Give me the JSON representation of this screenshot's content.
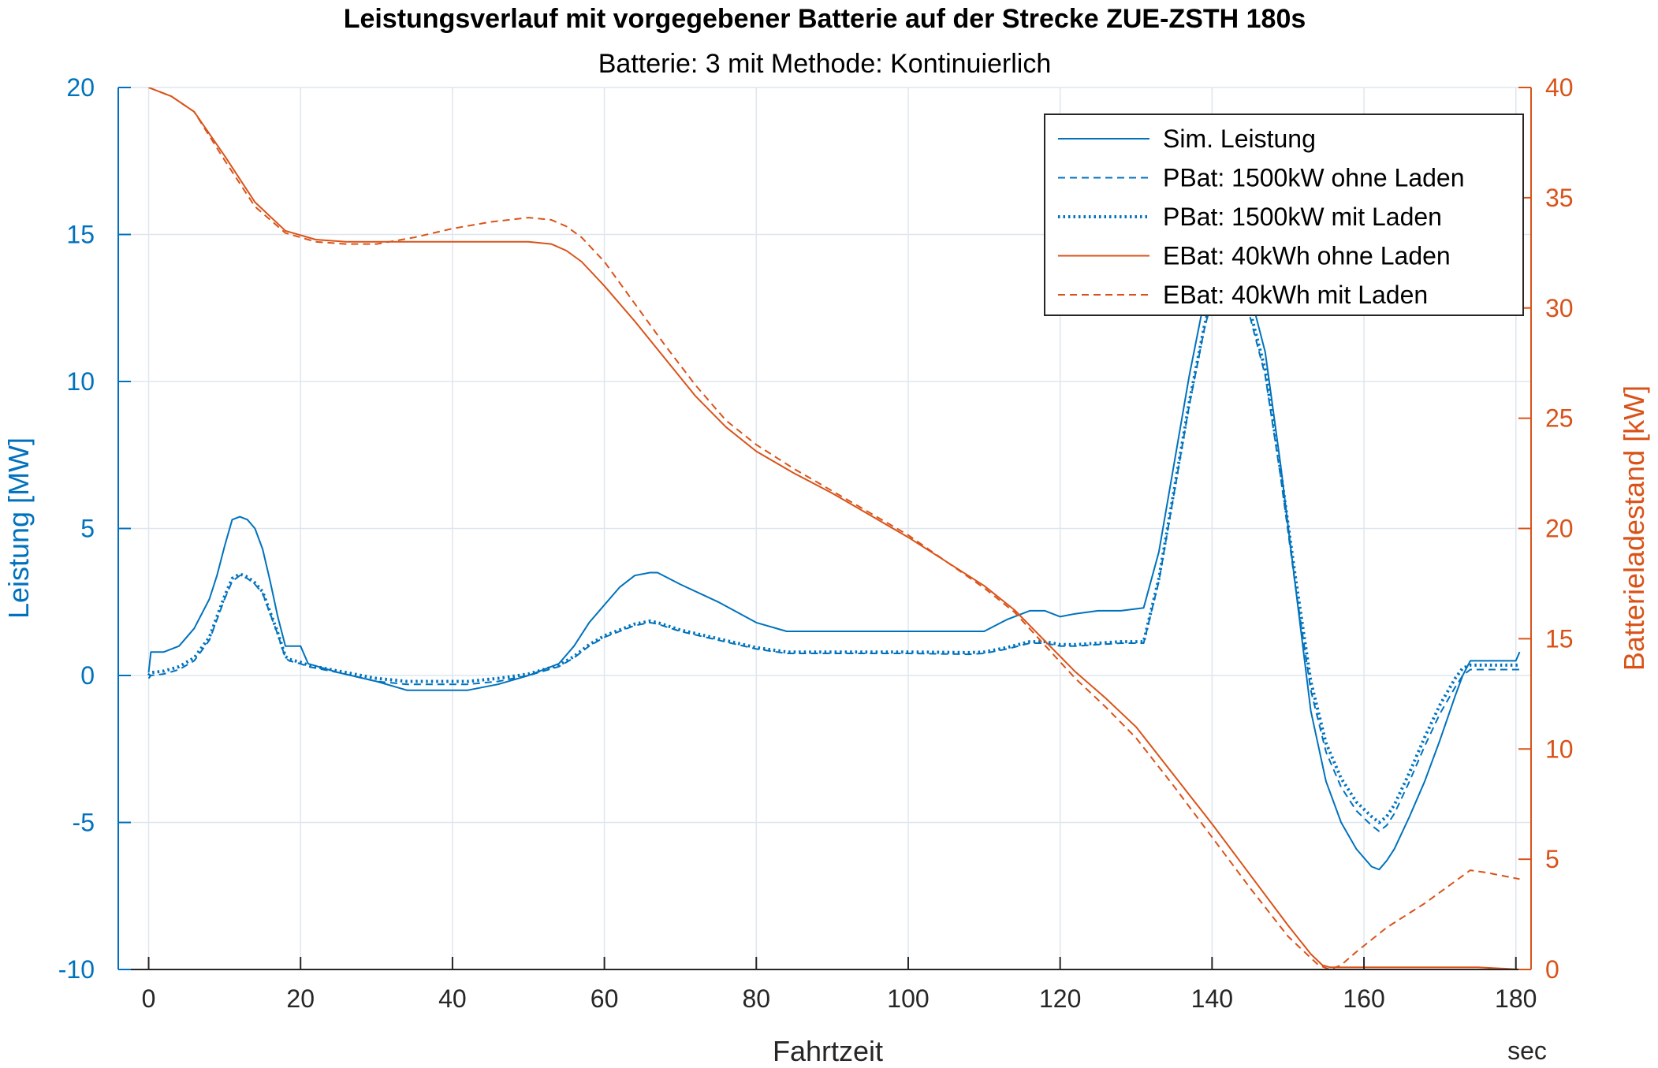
{
  "chart_data": {
    "type": "line",
    "title": "Leistungsverlauf mit vorgegebener Batterie auf der Strecke ZUE-ZSTH 180s",
    "subtitle": "Batterie: 3 mit Methode: Kontinuierlich",
    "xlabel": "Fahrtzeit",
    "xunit": "sec",
    "ylabel_left": "Leistung [MW]",
    "ylabel_right": "Batterieladestand [kW]",
    "xlim": [
      -4,
      182
    ],
    "ylim_left": [
      -10,
      20
    ],
    "ylim_right": [
      0,
      40
    ],
    "xticks": [
      0,
      20,
      40,
      60,
      80,
      100,
      120,
      140,
      160,
      180
    ],
    "yticks_left": [
      -10,
      -5,
      0,
      5,
      10,
      15,
      20
    ],
    "yticks_right": [
      0,
      5,
      10,
      15,
      20,
      25,
      30,
      35,
      40
    ],
    "grid": true,
    "legend_position": "top-right",
    "colors": {
      "left_axis": "#0072BD",
      "right_axis": "#D95319",
      "grid": "#dfe6ee"
    },
    "series": [
      {
        "name": "Sim. Leistung",
        "axis": "left",
        "color": "#0072BD",
        "style": "solid",
        "x": [
          0,
          0.3,
          2,
          4,
          6,
          8,
          9,
          10,
          11,
          12,
          13,
          14,
          15,
          16,
          17,
          18,
          18.5,
          20,
          21,
          25,
          30,
          34,
          38,
          42,
          46,
          50,
          54,
          56,
          58,
          60,
          62,
          64,
          66,
          67,
          70,
          75,
          80,
          84,
          90,
          100,
          108,
          110,
          113,
          116,
          118,
          120,
          122,
          125,
          128,
          131,
          133,
          135,
          137,
          139,
          141,
          143,
          145,
          147,
          149,
          151,
          153,
          155,
          157,
          159,
          161,
          162,
          163,
          164,
          166,
          168,
          170,
          172,
          173,
          174,
          175,
          178,
          180,
          180.5
        ],
        "values": [
          0.1,
          0.8,
          0.8,
          1.0,
          1.6,
          2.6,
          3.4,
          4.4,
          5.3,
          5.4,
          5.3,
          5.0,
          4.3,
          3.2,
          2.0,
          1.0,
          1.0,
          1.0,
          0.4,
          0.1,
          -0.2,
          -0.5,
          -0.5,
          -0.5,
          -0.3,
          0.0,
          0.4,
          1.0,
          1.8,
          2.4,
          3.0,
          3.4,
          3.5,
          3.5,
          3.1,
          2.5,
          1.8,
          1.5,
          1.5,
          1.5,
          1.5,
          1.5,
          1.9,
          2.2,
          2.2,
          2.0,
          2.1,
          2.2,
          2.2,
          2.3,
          4.2,
          7.2,
          10.2,
          12.8,
          14.2,
          14.2,
          13.0,
          11.0,
          7.2,
          3.0,
          -1.2,
          -3.6,
          -5.0,
          -5.9,
          -6.5,
          -6.6,
          -6.3,
          -5.9,
          -4.8,
          -3.6,
          -2.2,
          -0.7,
          0.0,
          0.5,
          0.5,
          0.5,
          0.5,
          0.8
        ]
      },
      {
        "name": "PBat: 1500kW ohne Laden",
        "axis": "left",
        "color": "#0072BD",
        "style": "dashed",
        "x": [
          0,
          0.3,
          2,
          4,
          6,
          8,
          9,
          10,
          11,
          12,
          13,
          14,
          15,
          16,
          17,
          18,
          18.5,
          20,
          21,
          25,
          30,
          34,
          38,
          42,
          46,
          50,
          54,
          56,
          58,
          60,
          62,
          64,
          66,
          67,
          70,
          75,
          80,
          84,
          90,
          100,
          108,
          110,
          113,
          116,
          118,
          120,
          122,
          125,
          128,
          131,
          133,
          135,
          137,
          139,
          141,
          143,
          145,
          147,
          149,
          151,
          153,
          155,
          157,
          159,
          161,
          162,
          163,
          164,
          166,
          168,
          170,
          172,
          173,
          174,
          175,
          178,
          180,
          180.5
        ],
        "values": [
          -0.1,
          0.0,
          0.05,
          0.2,
          0.5,
          1.2,
          1.9,
          2.6,
          3.2,
          3.4,
          3.3,
          3.1,
          2.8,
          2.1,
          1.4,
          0.6,
          0.5,
          0.4,
          0.3,
          0.1,
          -0.2,
          -0.3,
          -0.3,
          -0.3,
          -0.2,
          0.0,
          0.3,
          0.6,
          1.0,
          1.3,
          1.5,
          1.7,
          1.8,
          1.75,
          1.5,
          1.2,
          0.9,
          0.75,
          0.75,
          0.75,
          0.72,
          0.75,
          0.9,
          1.1,
          1.1,
          1.0,
          1.0,
          1.05,
          1.1,
          1.1,
          3.2,
          6.2,
          9.2,
          11.8,
          13.8,
          13.8,
          12.2,
          10.2,
          6.8,
          3.0,
          -0.5,
          -2.6,
          -3.8,
          -4.6,
          -5.1,
          -5.3,
          -5.1,
          -4.7,
          -3.6,
          -2.4,
          -1.3,
          -0.4,
          0.0,
          0.2,
          0.2,
          0.2,
          0.2,
          0.2
        ]
      },
      {
        "name": "PBat: 1500kW mit Laden",
        "axis": "left",
        "color": "#0072BD",
        "style": "dotted",
        "x": [
          0,
          0.3,
          2,
          4,
          6,
          8,
          9,
          10,
          11,
          12,
          13,
          14,
          15,
          16,
          17,
          18,
          18.5,
          20,
          21,
          25,
          30,
          34,
          38,
          42,
          46,
          50,
          54,
          56,
          58,
          60,
          62,
          64,
          66,
          67,
          70,
          75,
          80,
          84,
          90,
          100,
          108,
          110,
          113,
          116,
          118,
          120,
          122,
          125,
          128,
          131,
          133,
          135,
          137,
          139,
          141,
          143,
          145,
          147,
          149,
          151,
          153,
          155,
          157,
          159,
          161,
          162,
          163,
          164,
          166,
          168,
          170,
          172,
          173,
          174,
          175,
          178,
          180,
          180.5
        ],
        "values": [
          0.0,
          0.1,
          0.15,
          0.3,
          0.6,
          1.3,
          2.0,
          2.7,
          3.3,
          3.45,
          3.35,
          3.15,
          2.85,
          2.15,
          1.45,
          0.65,
          0.55,
          0.45,
          0.35,
          0.15,
          -0.1,
          -0.2,
          -0.2,
          -0.2,
          -0.1,
          0.05,
          0.35,
          0.65,
          1.05,
          1.35,
          1.55,
          1.75,
          1.85,
          1.8,
          1.55,
          1.25,
          0.95,
          0.8,
          0.8,
          0.8,
          0.78,
          0.8,
          0.95,
          1.15,
          1.15,
          1.05,
          1.05,
          1.1,
          1.15,
          1.15,
          3.3,
          6.3,
          9.3,
          11.9,
          13.9,
          13.9,
          12.4,
          10.4,
          7.0,
          3.3,
          -0.2,
          -2.3,
          -3.5,
          -4.3,
          -4.8,
          -5.0,
          -4.8,
          -4.4,
          -3.3,
          -2.1,
          -1.0,
          -0.1,
          0.25,
          0.35,
          0.35,
          0.35,
          0.35,
          0.35
        ]
      },
      {
        "name": "EBat: 40kWh ohne Laden",
        "axis": "right",
        "color": "#D95319",
        "style": "solid",
        "x": [
          0,
          3,
          6,
          10,
          14,
          18,
          22,
          26,
          30,
          40,
          50,
          53,
          55,
          57,
          60,
          64,
          68,
          72,
          76,
          80,
          85,
          90,
          100,
          110,
          114,
          118,
          122,
          126,
          130,
          135,
          140,
          145,
          150,
          153,
          154.5,
          155.5,
          160,
          170,
          175,
          180.5
        ],
        "values": [
          40,
          39.6,
          38.9,
          36.9,
          34.8,
          33.5,
          33.1,
          33.0,
          33.0,
          33.0,
          33.0,
          32.9,
          32.6,
          32.1,
          31.0,
          29.4,
          27.7,
          26.0,
          24.6,
          23.5,
          22.5,
          21.6,
          19.6,
          17.4,
          16.3,
          14.9,
          13.5,
          12.3,
          11.0,
          8.8,
          6.6,
          4.3,
          2.0,
          0.7,
          0.2,
          0.1,
          0.1,
          0.1,
          0.1,
          0.0
        ]
      },
      {
        "name": "EBat: 40kWh mit Laden",
        "axis": "right",
        "color": "#D95319",
        "style": "dashed",
        "x": [
          0,
          3,
          6,
          10,
          14,
          18,
          22,
          26,
          30,
          35,
          40,
          45,
          50,
          53,
          55,
          57,
          60,
          64,
          68,
          72,
          76,
          80,
          85,
          90,
          100,
          110,
          114,
          118,
          122,
          126,
          130,
          135,
          140,
          145,
          150,
          154,
          155.5,
          157,
          159,
          163,
          168,
          172,
          174,
          176,
          180.5
        ],
        "values": [
          40,
          39.6,
          38.9,
          36.7,
          34.6,
          33.4,
          33.0,
          32.9,
          32.9,
          33.2,
          33.6,
          33.9,
          34.1,
          34.0,
          33.7,
          33.2,
          32.1,
          30.2,
          28.3,
          26.5,
          24.9,
          23.8,
          22.7,
          21.7,
          19.7,
          17.3,
          16.2,
          14.7,
          13.2,
          11.9,
          10.5,
          8.3,
          6.0,
          3.7,
          1.5,
          0.2,
          0.0,
          0.2,
          0.8,
          1.9,
          3.0,
          4.0,
          4.5,
          4.4,
          4.1
        ]
      }
    ]
  }
}
